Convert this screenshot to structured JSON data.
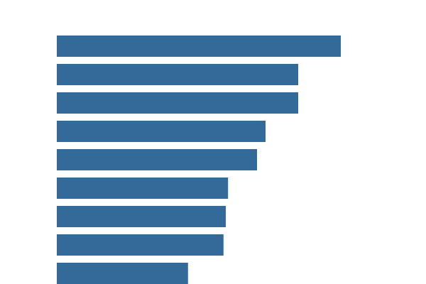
{
  "chart_data": {
    "type": "bar",
    "orientation": "horizontal",
    "values": [
      100,
      85,
      85,
      73.5,
      70.5,
      60.3,
      59.5,
      58.7,
      46.2
    ],
    "xlim": [
      0,
      100
    ],
    "grid": false,
    "legend": "none",
    "colors": {
      "bar": "#336a99",
      "background": "#ffffff"
    }
  }
}
